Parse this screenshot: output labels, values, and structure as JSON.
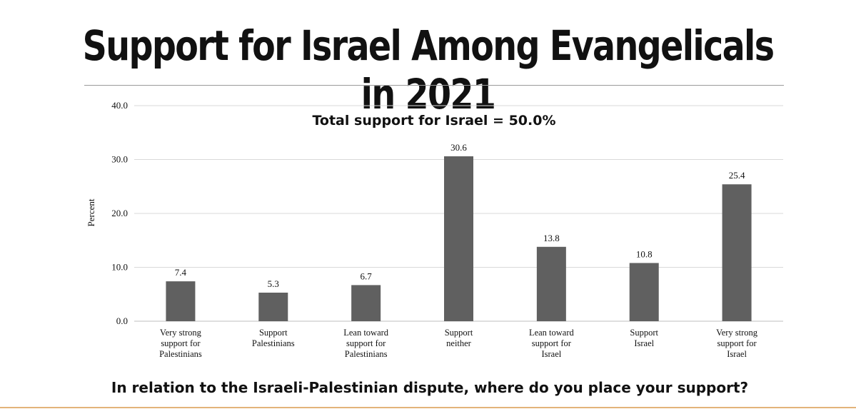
{
  "page": {
    "title": "Support for Israel Among Evangelicals in 2021"
  },
  "chart_data": {
    "type": "bar",
    "title": "Support for Israel Among Evangelicals in 2021",
    "annotation": "Total support for Israel = 50.0%",
    "xlabel": "In relation to the Israeli-Palestinian dispute, where do you place your support?",
    "ylabel": "Percent",
    "ylim": [
      0,
      40
    ],
    "yticks": [
      "0.0",
      "10.0",
      "20.0",
      "30.0",
      "40.0"
    ],
    "grid": true,
    "bar_color": "#606060",
    "categories": [
      [
        "Very strong",
        "support for",
        "Palestinians"
      ],
      [
        "Support",
        "Palestinians"
      ],
      [
        "Lean toward",
        "support for",
        "Palestinians"
      ],
      [
        "Support",
        "neither"
      ],
      [
        "Lean toward",
        "support for",
        "Israel"
      ],
      [
        "Support",
        "Israel"
      ],
      [
        "Very strong",
        "support for",
        "Israel"
      ]
    ],
    "values": [
      7.4,
      5.3,
      6.7,
      30.6,
      13.8,
      10.8,
      25.4
    ],
    "value_labels": [
      "7.4",
      "5.3",
      "6.7",
      "30.6",
      "13.8",
      "10.8",
      "25.4"
    ]
  }
}
